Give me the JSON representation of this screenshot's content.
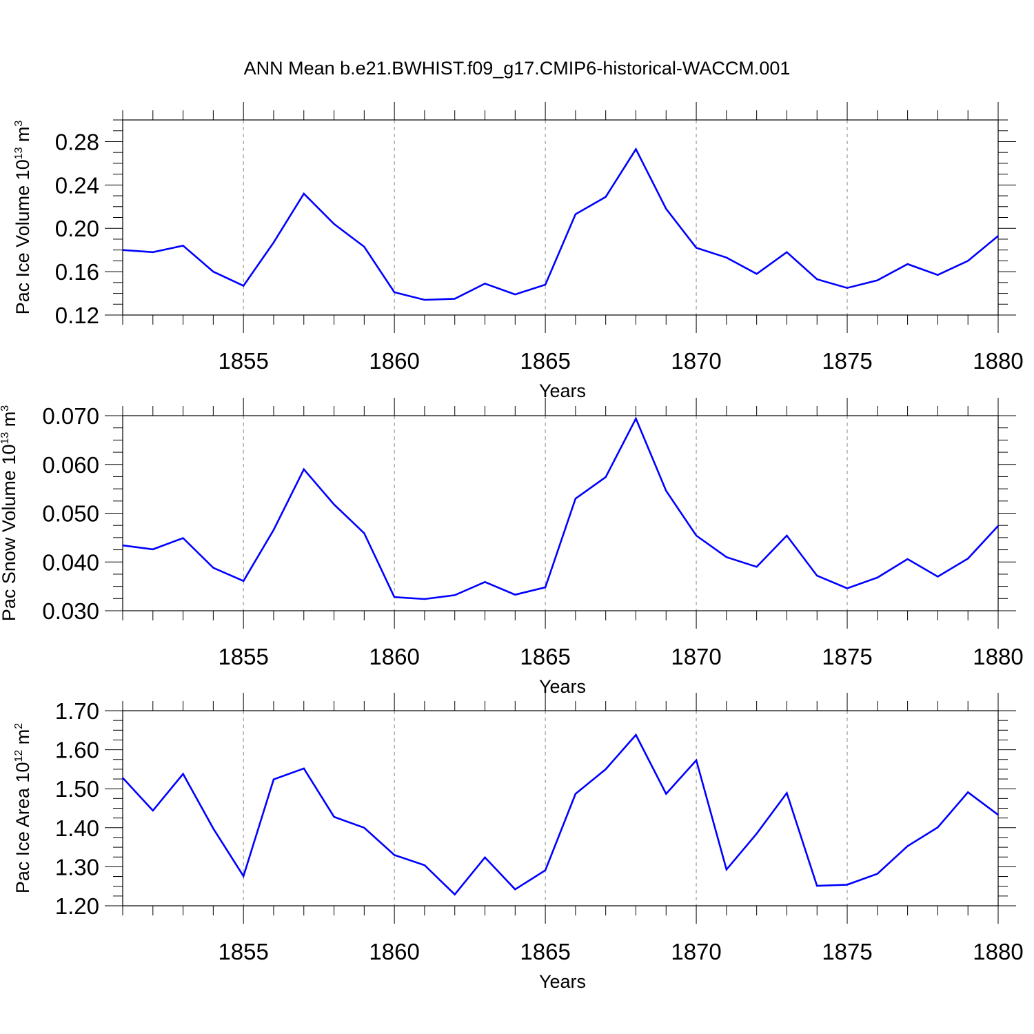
{
  "title": "ANN Mean b.e21.BWHIST.f09_g17.CMIP6-historical-WACCM.001",
  "colors": {
    "line": "#0000ff",
    "axis": "#000000",
    "grid": "#888888"
  },
  "chart_data": [
    {
      "type": "line",
      "xlabel": "Years",
      "ylabel_parts": {
        "main": "Pac Ice Volume 10",
        "exp": "13",
        "unit": " m",
        "unit_exp": "3"
      },
      "xlim": [
        1851,
        1880
      ],
      "ylim": [
        0.12,
        0.3
      ],
      "yticks": [
        "0.12",
        "0.16",
        "0.20",
        "0.24",
        "0.28"
      ],
      "xticks": [
        "1855",
        "1860",
        "1865",
        "1870",
        "1875",
        "1880"
      ],
      "grid": "vertical-dashed",
      "series": [
        {
          "x": [
            1851,
            1852,
            1853,
            1854,
            1855,
            1856,
            1857,
            1858,
            1859,
            1860,
            1861,
            1862,
            1863,
            1864,
            1865,
            1866,
            1867,
            1868,
            1869,
            1870,
            1871,
            1872,
            1873,
            1874,
            1875,
            1876,
            1877,
            1878,
            1879,
            1880
          ],
          "values": [
            0.18,
            0.178,
            0.184,
            0.16,
            0.147,
            0.187,
            0.232,
            0.204,
            0.183,
            0.141,
            0.134,
            0.135,
            0.149,
            0.139,
            0.148,
            0.213,
            0.229,
            0.273,
            0.218,
            0.182,
            0.173,
            0.158,
            0.178,
            0.153,
            0.145,
            0.152,
            0.167,
            0.157,
            0.17,
            0.193
          ]
        }
      ]
    },
    {
      "type": "line",
      "xlabel": "Years",
      "ylabel_parts": {
        "main": "Pac Snow Volume 10",
        "exp": "13",
        "unit": " m",
        "unit_exp": "3"
      },
      "xlim": [
        1851,
        1880
      ],
      "ylim": [
        0.03,
        0.07
      ],
      "yticks": [
        "0.030",
        "0.040",
        "0.050",
        "0.060",
        "0.070"
      ],
      "xticks": [
        "1855",
        "1860",
        "1865",
        "1870",
        "1875",
        "1880"
      ],
      "grid": "vertical-dashed",
      "series": [
        {
          "x": [
            1851,
            1852,
            1853,
            1854,
            1855,
            1856,
            1857,
            1858,
            1859,
            1860,
            1861,
            1862,
            1863,
            1864,
            1865,
            1866,
            1867,
            1868,
            1869,
            1870,
            1871,
            1872,
            1873,
            1874,
            1875,
            1876,
            1877,
            1878,
            1879,
            1880
          ],
          "values": [
            0.0434,
            0.0426,
            0.0449,
            0.0388,
            0.0361,
            0.0466,
            0.059,
            0.0518,
            0.0459,
            0.0328,
            0.0324,
            0.0332,
            0.0359,
            0.0333,
            0.0348,
            0.053,
            0.0574,
            0.0694,
            0.0546,
            0.0454,
            0.041,
            0.039,
            0.0454,
            0.0372,
            0.0346,
            0.0368,
            0.0406,
            0.037,
            0.0407,
            0.0474
          ]
        }
      ]
    },
    {
      "type": "line",
      "xlabel": "Years",
      "ylabel_parts": {
        "main": "Pac Ice Area 10",
        "exp": "12",
        "unit": " m",
        "unit_exp": "2"
      },
      "xlim": [
        1851,
        1880
      ],
      "ylim": [
        1.2,
        1.7
      ],
      "yticks": [
        "1.20",
        "1.30",
        "1.40",
        "1.50",
        "1.60",
        "1.70"
      ],
      "xticks": [
        "1855",
        "1860",
        "1865",
        "1870",
        "1875",
        "1880"
      ],
      "grid": "vertical-dashed",
      "series": [
        {
          "x": [
            1851,
            1852,
            1853,
            1854,
            1855,
            1856,
            1857,
            1858,
            1859,
            1860,
            1861,
            1862,
            1863,
            1864,
            1865,
            1866,
            1867,
            1868,
            1869,
            1870,
            1871,
            1872,
            1873,
            1874,
            1875,
            1876,
            1877,
            1878,
            1879,
            1880
          ],
          "values": [
            1.528,
            1.444,
            1.538,
            1.398,
            1.276,
            1.524,
            1.552,
            1.428,
            1.4,
            1.33,
            1.304,
            1.229,
            1.324,
            1.242,
            1.291,
            1.487,
            1.55,
            1.638,
            1.487,
            1.573,
            1.293,
            1.385,
            1.489,
            1.251,
            1.254,
            1.282,
            1.353,
            1.401,
            1.491,
            1.433
          ]
        }
      ]
    }
  ]
}
